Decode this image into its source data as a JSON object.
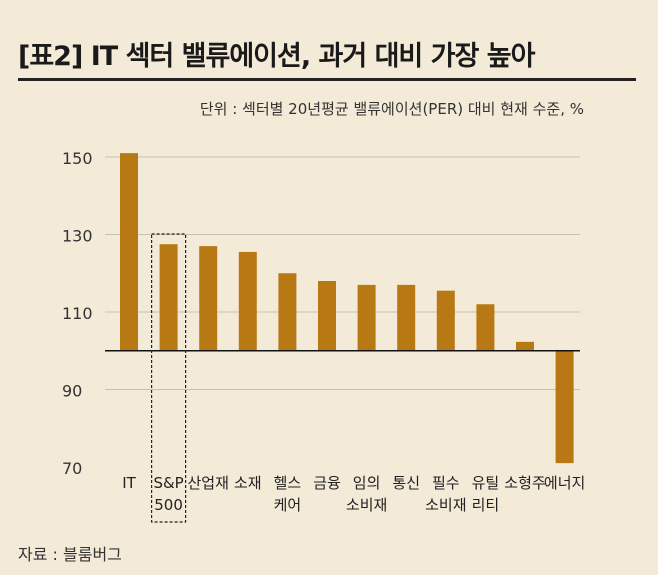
{
  "header": {
    "title": "[표2] IT 섹터 밸류에이션, 과거 대비 가장 높아",
    "unit_note": "단위 : 섹터별 20년평균 밸류에이션(PER) 대비 현재 수준, %"
  },
  "footer": {
    "source": "자료 : 블룸버그"
  },
  "colors": {
    "bar": "#b87914",
    "grid": "#c8c0b2",
    "baseline": "#111111",
    "highlight_box": "#222222"
  },
  "chart_data": {
    "type": "bar",
    "title": "[표2] IT 섹터 밸류에이션, 과거 대비 가장 높아",
    "xlabel": "",
    "ylabel": "",
    "baseline_value": 100,
    "ylim": [
      70,
      155
    ],
    "yticks": [
      70,
      90,
      110,
      130,
      150
    ],
    "grid": true,
    "highlighted_category": "S&P 500",
    "categories": [
      {
        "name": "IT",
        "label_lines": [
          "IT"
        ]
      },
      {
        "name": "S&P 500",
        "label_lines": [
          "S&P",
          "500"
        ]
      },
      {
        "name": "산업재",
        "label_lines": [
          "산업재"
        ]
      },
      {
        "name": "소재",
        "label_lines": [
          "소재"
        ]
      },
      {
        "name": "헬스케어",
        "label_lines": [
          "헬스",
          "케어"
        ]
      },
      {
        "name": "금융",
        "label_lines": [
          "금융"
        ]
      },
      {
        "name": "임의소비재",
        "label_lines": [
          "임의",
          "소비재"
        ]
      },
      {
        "name": "통신",
        "label_lines": [
          "통신"
        ]
      },
      {
        "name": "필수소비재",
        "label_lines": [
          "필수",
          "소비재"
        ]
      },
      {
        "name": "유틸리티",
        "label_lines": [
          "유틸",
          "리티"
        ]
      },
      {
        "name": "소형주",
        "label_lines": [
          "소형주"
        ]
      },
      {
        "name": "에너지",
        "label_lines": [
          "에너지"
        ]
      }
    ],
    "values": [
      151,
      127.5,
      127,
      125.5,
      120,
      118,
      117,
      117,
      115.5,
      112,
      102.3,
      71
    ]
  }
}
